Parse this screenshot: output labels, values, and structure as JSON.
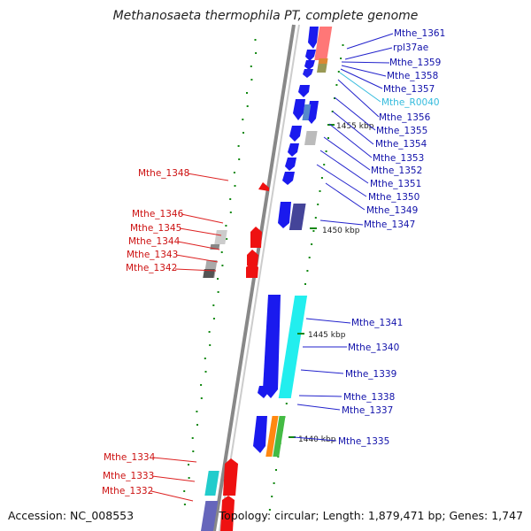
{
  "title": "Methanosaeta thermophila PT, complete genome",
  "footer": {
    "accession": "Accession: NC_008553",
    "topology": "Topology: circular; Length: 1,879,471 bp; Genes: 1,747"
  },
  "colors": {
    "forward_cds": "#1a1aee",
    "reverse_cds": "#ee1111",
    "rna_label": "#33bbdd",
    "tick": "#118811",
    "backbone": "#888888"
  },
  "kbp_labels": [
    {
      "text": "1455 kbp",
      "pos": 1455
    },
    {
      "text": "1450 kbp",
      "pos": 1450
    },
    {
      "text": "1445 kbp",
      "pos": 1445
    },
    {
      "text": "1440 kbp",
      "pos": 1440
    }
  ],
  "right_labels": [
    {
      "text": "Mthe_1361",
      "type": "cds"
    },
    {
      "text": "rpl37ae",
      "type": "cds"
    },
    {
      "text": "Mthe_1359",
      "type": "cds"
    },
    {
      "text": "Mthe_1358",
      "type": "cds"
    },
    {
      "text": "Mthe_1357",
      "type": "cds"
    },
    {
      "text": "Mthe_R0040",
      "type": "rna"
    },
    {
      "text": "Mthe_1356",
      "type": "cds"
    },
    {
      "text": "Mthe_1355",
      "type": "cds"
    },
    {
      "text": "Mthe_1354",
      "type": "cds"
    },
    {
      "text": "Mthe_1353",
      "type": "cds"
    },
    {
      "text": "Mthe_1352",
      "type": "cds"
    },
    {
      "text": "Mthe_1351",
      "type": "cds"
    },
    {
      "text": "Mthe_1350",
      "type": "cds"
    },
    {
      "text": "Mthe_1349",
      "type": "cds"
    },
    {
      "text": "Mthe_1347",
      "type": "cds"
    },
    {
      "text": "Mthe_1341",
      "type": "cds"
    },
    {
      "text": "Mthe_1340",
      "type": "cds"
    },
    {
      "text": "Mthe_1339",
      "type": "cds"
    },
    {
      "text": "Mthe_1338",
      "type": "cds"
    },
    {
      "text": "Mthe_1337",
      "type": "cds"
    },
    {
      "text": "Mthe_1335",
      "type": "cds"
    }
  ],
  "left_labels": [
    {
      "text": "Mthe_1348"
    },
    {
      "text": "Mthe_1346"
    },
    {
      "text": "Mthe_1345"
    },
    {
      "text": "Mthe_1344"
    },
    {
      "text": "Mthe_1343"
    },
    {
      "text": "Mthe_1342"
    },
    {
      "text": "Mthe_1334"
    },
    {
      "text": "Mthe_1333"
    },
    {
      "text": "Mthe_1332"
    }
  ]
}
